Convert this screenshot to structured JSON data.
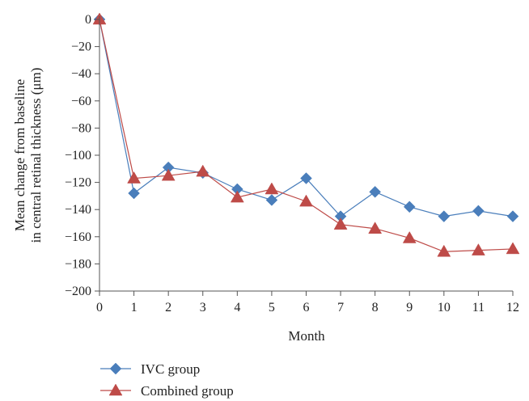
{
  "chart_data": {
    "type": "line",
    "title": "",
    "xlabel": "Month",
    "ylabel_lines": [
      "Mean change from baseline",
      "in central retinal thickness (μm)"
    ],
    "x": [
      0,
      1,
      2,
      3,
      4,
      5,
      6,
      7,
      8,
      9,
      10,
      11,
      12
    ],
    "xlim": [
      0,
      12
    ],
    "ylim": [
      -200,
      0
    ],
    "y_ticks": [
      0,
      -20,
      -40,
      -60,
      -80,
      -100,
      -120,
      -140,
      -160,
      -180,
      -200
    ],
    "y_tick_labels": [
      "0",
      "−20",
      "−40",
      "−60",
      "−80",
      "−100",
      "−120",
      "−140",
      "−160",
      "−180",
      "−200"
    ],
    "grid": false,
    "legend_placement": "bottom-left below plot",
    "series": [
      {
        "name": "IVC group",
        "marker": "diamond",
        "color": "#4a7ebb",
        "values": [
          0,
          -128,
          -109,
          -113,
          -125,
          -133,
          -117,
          -145,
          -127,
          -138,
          -145,
          -141,
          -145
        ]
      },
      {
        "name": "Combined group",
        "marker": "triangle",
        "color": "#be4b48",
        "values": [
          0,
          -117,
          -115,
          -112,
          -131,
          -125,
          -134,
          -151,
          -154,
          -161,
          -171,
          -170,
          -169
        ]
      }
    ]
  }
}
